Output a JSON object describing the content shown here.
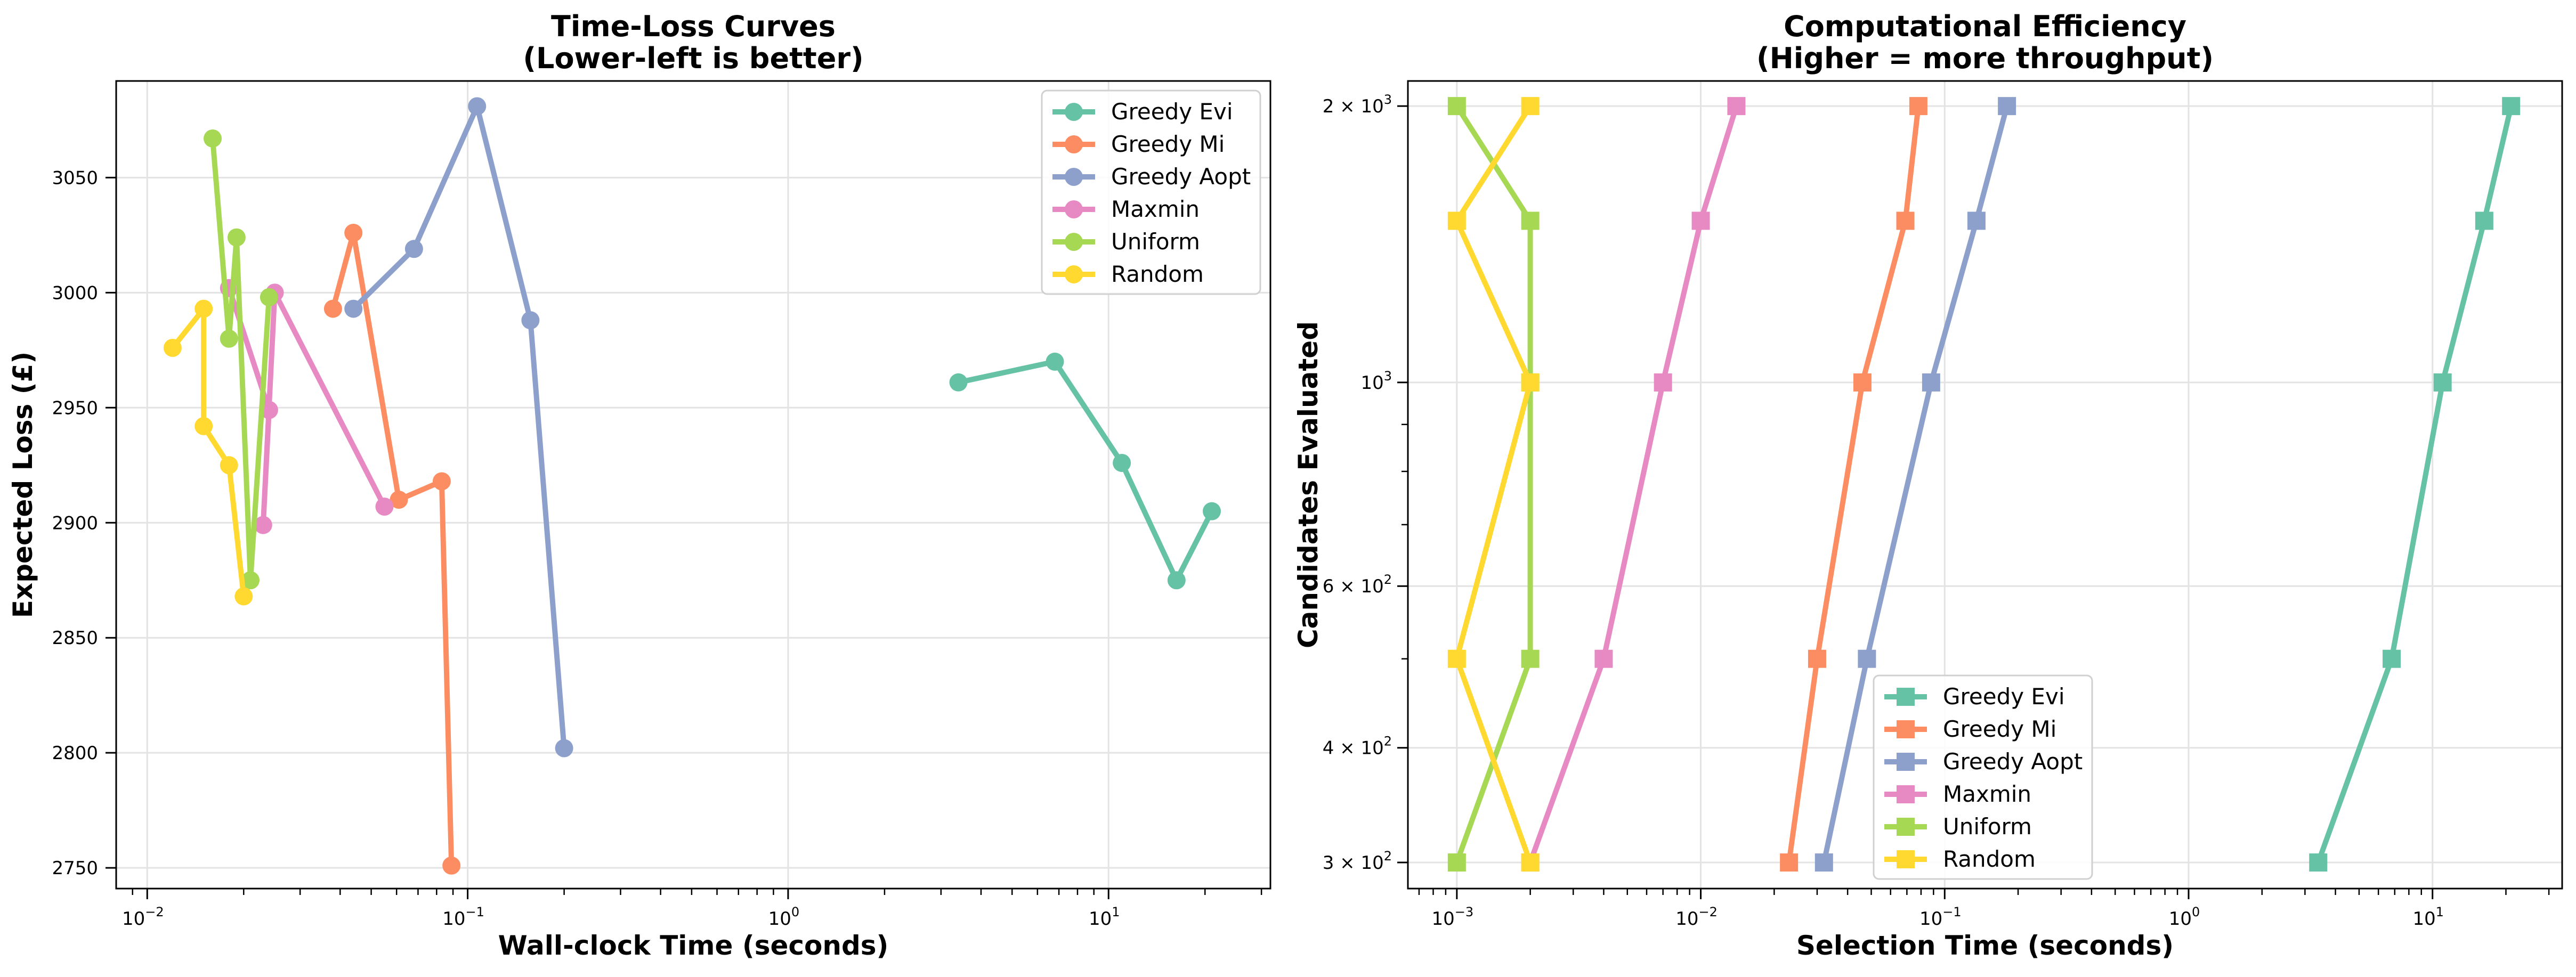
{
  "figure": {
    "legend_left_title": "",
    "legend_right_title": ""
  },
  "colors": {
    "Greedy Evi": "#66c2a5",
    "Greedy Mi": "#fc8d62",
    "Greedy Aopt": "#8da0cb",
    "Maxmin": "#e78ac3",
    "Uniform": "#a6d854",
    "Random": "#ffd92f"
  },
  "chart_data": [
    {
      "type": "line",
      "title": "Time-Loss Curves",
      "subtitle": "(Lower-left is better)",
      "xlabel": "Wall-clock Time (seconds)",
      "ylabel": "Expected Loss (£)",
      "xscale": "log",
      "xlim": [
        0.008,
        32
      ],
      "ylim": [
        2741,
        3092
      ],
      "xticks": [
        0.01,
        0.1,
        1,
        10
      ],
      "xtick_labels": [
        {
          "base": "10",
          "exp": "−2"
        },
        {
          "base": "10",
          "exp": "−1"
        },
        {
          "base": "10",
          "exp": "0"
        },
        {
          "base": "10",
          "exp": "1"
        }
      ],
      "yticks": [
        2750,
        2800,
        2850,
        2900,
        2950,
        3000,
        3050
      ],
      "ytick_labels": [
        "2750",
        "2800",
        "2850",
        "2900",
        "2950",
        "3000",
        "3050"
      ],
      "grid": true,
      "legend": "top-right",
      "marker": "circle",
      "series": [
        {
          "name": "Greedy Evi",
          "points": [
            [
              3.4,
              2961
            ],
            [
              6.8,
              2970
            ],
            [
              11,
              2926
            ],
            [
              16.3,
              2875
            ],
            [
              21,
              2905
            ]
          ]
        },
        {
          "name": "Greedy Mi",
          "points": [
            [
              0.038,
              2993
            ],
            [
              0.044,
              3026
            ],
            [
              0.061,
              2910
            ],
            [
              0.083,
              2918
            ],
            [
              0.089,
              2751
            ]
          ]
        },
        {
          "name": "Greedy Aopt",
          "points": [
            [
              0.044,
              2993
            ],
            [
              0.068,
              3019
            ],
            [
              0.107,
              3081
            ],
            [
              0.157,
              2988
            ],
            [
              0.2,
              2802
            ]
          ]
        },
        {
          "name": "Maxmin",
          "points": [
            [
              0.018,
              3002
            ],
            [
              0.024,
              2949
            ],
            [
              0.023,
              2899
            ],
            [
              0.025,
              3000
            ],
            [
              0.055,
              2907
            ]
          ]
        },
        {
          "name": "Uniform",
          "points": [
            [
              0.016,
              3067
            ],
            [
              0.018,
              2980
            ],
            [
              0.019,
              3024
            ],
            [
              0.021,
              2875
            ],
            [
              0.024,
              2998
            ]
          ]
        },
        {
          "name": "Random",
          "points": [
            [
              0.012,
              2976
            ],
            [
              0.015,
              2993
            ],
            [
              0.015,
              2942
            ],
            [
              0.018,
              2925
            ],
            [
              0.02,
              2868
            ]
          ]
        }
      ]
    },
    {
      "type": "line",
      "title": "Computational Efficiency",
      "subtitle": "(Higher = more throughput)",
      "xlabel": "Selection Time (seconds)",
      "ylabel": "Candidates Evaluated",
      "xscale": "log",
      "yscale": "log",
      "xlim": [
        0.00063,
        34
      ],
      "ylim": [
        281,
        2130
      ],
      "xticks": [
        0.001,
        0.01,
        0.1,
        1,
        10
      ],
      "xtick_labels": [
        {
          "base": "10",
          "exp": "−3"
        },
        {
          "base": "10",
          "exp": "−2"
        },
        {
          "base": "10",
          "exp": "−1"
        },
        {
          "base": "10",
          "exp": "0"
        },
        {
          "base": "10",
          "exp": "1"
        }
      ],
      "yticks": [
        300,
        400,
        600,
        1000,
        2000
      ],
      "ytick_labels": [
        {
          "mant": "3",
          "base": "10",
          "exp": "2"
        },
        {
          "mant": "4",
          "base": "10",
          "exp": "2"
        },
        {
          "mant": "6",
          "base": "10",
          "exp": "2"
        },
        {
          "mant": "",
          "base": "10",
          "exp": "3"
        },
        {
          "mant": "2",
          "base": "10",
          "exp": "3"
        }
      ],
      "yminor": [
        500,
        700,
        800,
        900
      ],
      "grid": true,
      "legend": "bottom-center",
      "marker": "square",
      "series": [
        {
          "name": "Greedy Evi",
          "points": [
            [
              3.4,
              300
            ],
            [
              6.8,
              500
            ],
            [
              11,
              1000
            ],
            [
              16.3,
              1500
            ],
            [
              21,
              2000
            ]
          ]
        },
        {
          "name": "Greedy Mi",
          "points": [
            [
              0.023,
              300
            ],
            [
              0.03,
              500
            ],
            [
              0.046,
              1000
            ],
            [
              0.069,
              1500
            ],
            [
              0.078,
              2000
            ]
          ]
        },
        {
          "name": "Greedy Aopt",
          "points": [
            [
              0.032,
              300
            ],
            [
              0.048,
              500
            ],
            [
              0.088,
              1000
            ],
            [
              0.135,
              1500
            ],
            [
              0.18,
              2000
            ]
          ]
        },
        {
          "name": "Maxmin",
          "points": [
            [
              0.002,
              300
            ],
            [
              0.004,
              500
            ],
            [
              0.007,
              1000
            ],
            [
              0.01,
              1500
            ],
            [
              0.014,
              2000
            ]
          ]
        },
        {
          "name": "Uniform",
          "points": [
            [
              0.001,
              300
            ],
            [
              0.002,
              500
            ],
            [
              0.002,
              1000
            ],
            [
              0.002,
              1500
            ],
            [
              0.001,
              2000
            ]
          ]
        },
        {
          "name": "Random",
          "points": [
            [
              0.002,
              300
            ],
            [
              0.001,
              500
            ],
            [
              0.002,
              1000
            ],
            [
              0.001,
              1500
            ],
            [
              0.002,
              2000
            ]
          ]
        }
      ]
    }
  ]
}
